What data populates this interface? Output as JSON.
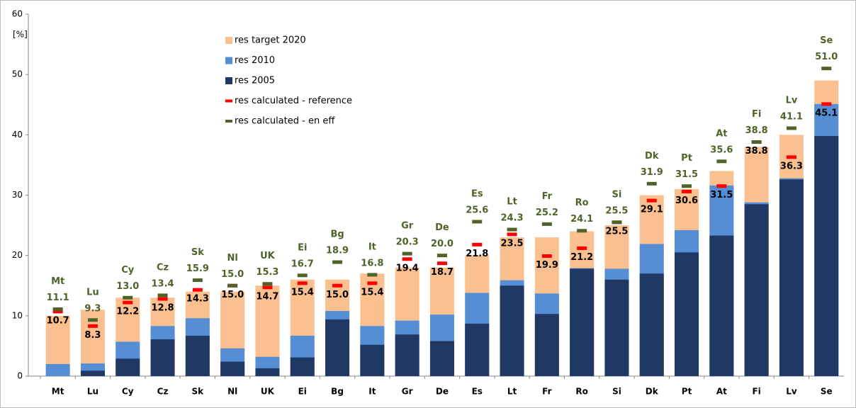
{
  "chart_data": {
    "type": "bar",
    "ylabel": "[%]",
    "categories": [
      "Mt",
      "Lu",
      "Cy",
      "Cz",
      "Sk",
      "Nl",
      "UK",
      "Ei",
      "Bg",
      "It",
      "Gr",
      "De",
      "Es",
      "Lt",
      "Fr",
      "Ro",
      "Si",
      "Dk",
      "Pt",
      "At",
      "Fi",
      "Lv",
      "Se"
    ],
    "ylim": [
      0,
      60
    ],
    "yticks": [
      0,
      10,
      20,
      30,
      40,
      50,
      60
    ],
    "series": [
      {
        "name": "res target 2020",
        "color": "#fac090",
        "kind": "bar",
        "values": [
          10,
          11,
          13,
          13,
          14,
          14,
          15,
          16,
          16,
          17,
          18,
          18,
          20,
          23,
          23,
          24,
          25,
          30,
          31,
          34,
          38,
          40,
          49
        ]
      },
      {
        "name": "res 2010",
        "color": "#558ed5",
        "kind": "bar",
        "values": [
          2.0,
          2.1,
          5.7,
          8.3,
          9.6,
          4.6,
          3.2,
          6.7,
          10.8,
          8.3,
          9.2,
          10.2,
          13.8,
          15.9,
          13.7,
          17.9,
          17.8,
          21.9,
          24.2,
          31.6,
          28.8,
          32.8,
          45.1
        ]
      },
      {
        "name": "res 2005",
        "color": "#1f3864",
        "kind": "bar",
        "values": [
          0,
          0.9,
          2.9,
          6.1,
          6.7,
          2.4,
          1.3,
          3.1,
          9.4,
          5.2,
          6.9,
          5.8,
          8.7,
          15.0,
          10.3,
          17.8,
          16.0,
          17.0,
          20.5,
          23.3,
          28.5,
          32.6,
          39.8
        ]
      },
      {
        "name": "res calculated - reference",
        "color": "#ff0000",
        "kind": "dash",
        "values": [
          10.7,
          8.3,
          12.2,
          12.8,
          14.3,
          15.0,
          14.7,
          15.4,
          15.0,
          15.4,
          19.4,
          18.7,
          21.8,
          23.5,
          19.9,
          21.2,
          25.5,
          29.1,
          30.6,
          31.5,
          38.8,
          36.3,
          45.1
        ],
        "value_labels": [
          "10.7",
          "8.3",
          "12.2",
          "12.8",
          "14.3",
          "15.0",
          "14.7",
          "15.4",
          "15.0",
          "15.4",
          "19.4",
          "18.7",
          "21.8",
          "23.5",
          "19.9",
          "21.2",
          "25.5",
          "29.1",
          "30.6",
          "31.5",
          "38.8",
          "36.3",
          "45.1"
        ]
      },
      {
        "name": "res calculated - en eff",
        "color": "#4f6228",
        "kind": "dash",
        "values": [
          11.1,
          9.3,
          13.0,
          13.4,
          15.9,
          15.0,
          15.3,
          16.7,
          18.9,
          16.8,
          20.3,
          20.0,
          25.6,
          24.3,
          25.2,
          24.1,
          25.5,
          31.9,
          31.5,
          35.6,
          38.8,
          41.1,
          51.0
        ],
        "value_labels": [
          "11.1",
          "9.3",
          "13.0",
          "13.4",
          "15.9",
          "15.0",
          "15.3",
          "16.7",
          "18.9",
          "16.8",
          "20.3",
          "20.0",
          "25.6",
          "24.3",
          "25.2",
          "24.1",
          "25.5",
          "31.9",
          "31.5",
          "35.6",
          "38.8",
          "41.1",
          "51.0"
        ]
      }
    ]
  }
}
